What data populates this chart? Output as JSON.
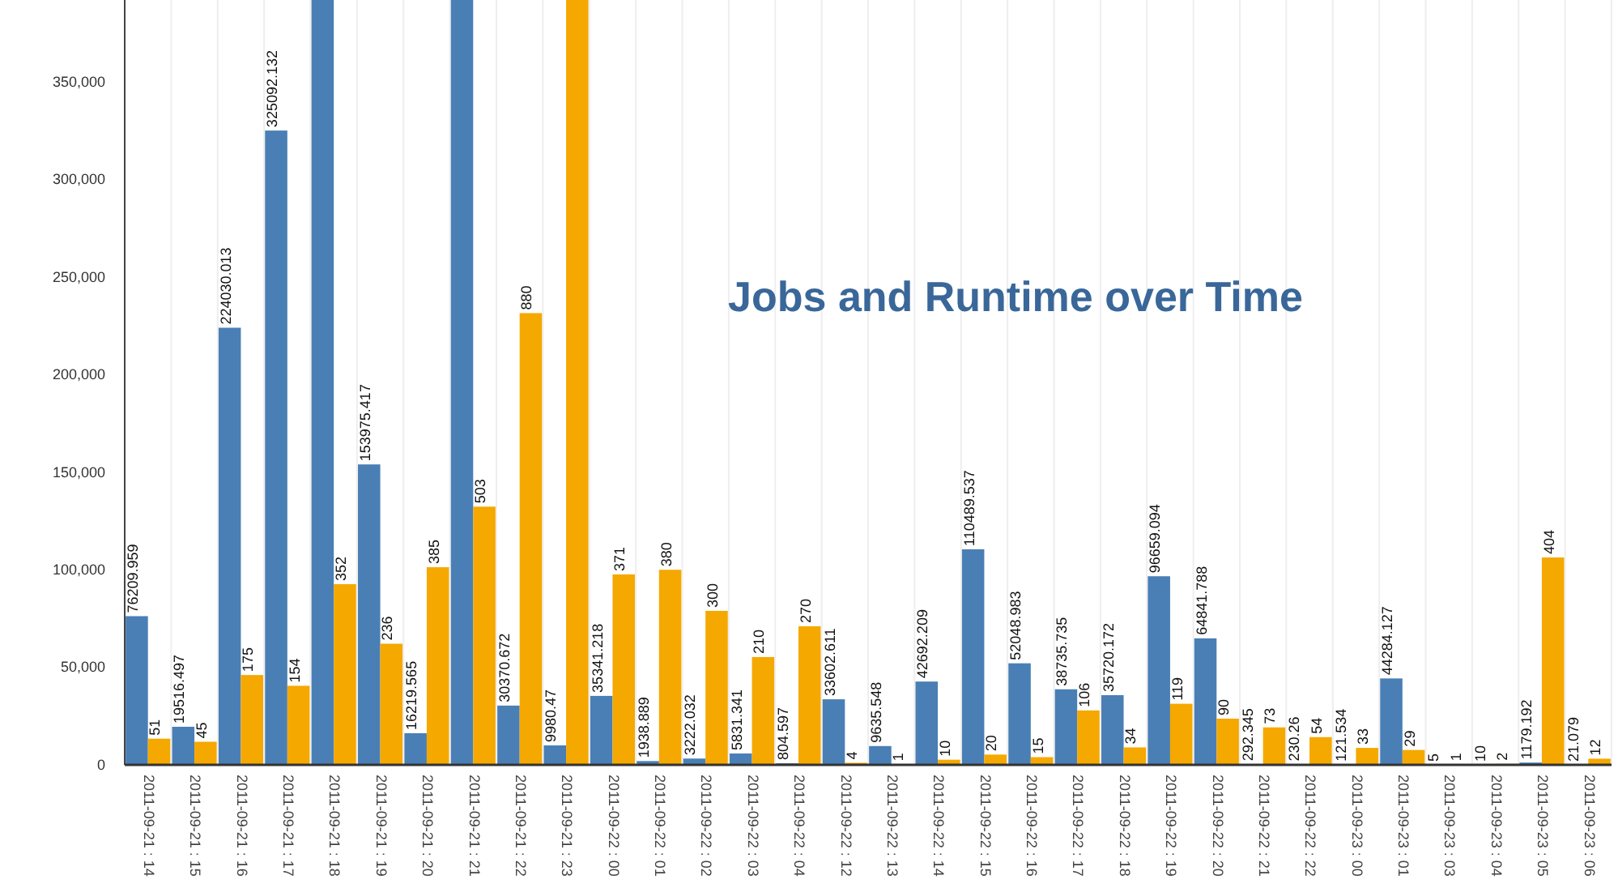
{
  "chart_data": {
    "type": "bar",
    "title": "Jobs and Runtime over Time",
    "categories": [
      "2011-09-21 : 14",
      "2011-09-21 : 15",
      "2011-09-21 : 16",
      "2011-09-21 : 17",
      "2011-09-21 : 18",
      "2011-09-21 : 19",
      "2011-09-21 : 20",
      "2011-09-21 : 21",
      "2011-09-21 : 22",
      "2011-09-21 : 23",
      "2011-09-22 : 00",
      "2011-09-22 : 01",
      "2011-09-22 : 02",
      "2011-09-22 : 03",
      "2011-09-22 : 04",
      "2011-09-22 : 12",
      "2011-09-22 : 13",
      "2011-09-22 : 14",
      "2011-09-22 : 15",
      "2011-09-22 : 16",
      "2011-09-22 : 17",
      "2011-09-22 : 18",
      "2011-09-22 : 19",
      "2011-09-22 : 20",
      "2011-09-22 : 21",
      "2011-09-22 : 22",
      "2011-09-23 : 00",
      "2011-09-23 : 01",
      "2011-09-23 : 03",
      "2011-09-23 : 04",
      "2011-09-23 : 05",
      "2011-09-23 : 06"
    ],
    "series": [
      {
        "color": "#4a7fb5",
        "values": [
          76209.959,
          19516.497,
          224030.013,
          325092.132,
          392000,
          153975.417,
          16219.565,
          392000,
          30370.672,
          9980.47,
          35341.218,
          1938.889,
          3222.032,
          5831.341,
          804.597,
          33602.611,
          9635.548,
          42692.209,
          110489.537,
          52048.983,
          38735.735,
          35720.172,
          96659.094,
          64841.788,
          292.345,
          230.26,
          121.534,
          44284.127,
          5,
          10,
          1179.192,
          21.079
        ],
        "value_labels": [
          "76209.959",
          "19516.497",
          "224030.013",
          "325092.132",
          null,
          "153975.417",
          "16219.565",
          null,
          "30370.672",
          "9980.47",
          "35341.218",
          "1938.889",
          "3222.032",
          "5831.341",
          "804.597",
          "33602.611",
          "9635.548",
          "42692.209",
          "110489.537",
          "52048.983",
          "38735.735",
          "35720.172",
          "96659.094",
          "64841.788",
          "292.345",
          "230.26",
          "121.534",
          "44284.127",
          "5",
          "10",
          "1179.192",
          "21.079"
        ]
      },
      {
        "color": "#f5a800",
        "axis": "y2",
        "values": [
          51,
          45,
          175,
          154,
          352,
          236,
          385,
          503,
          880,
          1490,
          371,
          380,
          300,
          210,
          270,
          4,
          1,
          10,
          20,
          15,
          106,
          34,
          119,
          90,
          73,
          54,
          33,
          29,
          1,
          2,
          404,
          12
        ],
        "value_labels": [
          "51",
          "45",
          "175",
          "154",
          "352",
          "236",
          "385",
          "503",
          "880",
          null,
          "371",
          "380",
          "300",
          "210",
          "270",
          "4",
          "1",
          "10",
          "20",
          "15",
          "106",
          "34",
          "119",
          "90",
          "73",
          "54",
          "33",
          "29",
          "1",
          "2",
          "404",
          "12"
        ]
      }
    ],
    "ylim": [
      0,
      392000
    ],
    "yticks": [
      {
        "value": 0,
        "label": "0"
      },
      {
        "value": 50000,
        "label": "50,000"
      },
      {
        "value": 100000,
        "label": "100,000"
      },
      {
        "value": 150000,
        "label": "150,000"
      },
      {
        "value": 200000,
        "label": "200,000"
      },
      {
        "value": 250000,
        "label": "250,000"
      },
      {
        "value": 300000,
        "label": "300,000"
      },
      {
        "value": 350000,
        "label": "350,000"
      }
    ],
    "y2lim": [
      0,
      1490
    ],
    "grid": "x"
  }
}
